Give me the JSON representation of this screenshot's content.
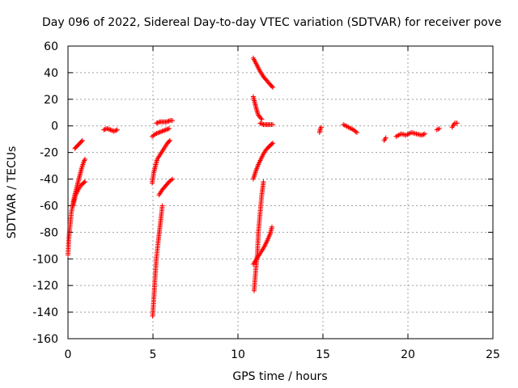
{
  "chart_data": {
    "type": "scatter",
    "title": "Day 096 of 2022, Sidereal Day-to-day VTEC variation (SDTVAR) for receiver pove",
    "xlabel": "GPS time / hours",
    "ylabel": "SDTVAR / TECUs",
    "xlim": [
      0,
      25
    ],
    "ylim": [
      -160,
      60
    ],
    "xticks": [
      0,
      5,
      10,
      15,
      20,
      25
    ],
    "yticks": [
      -160,
      -140,
      -120,
      -100,
      -80,
      -60,
      -40,
      -20,
      0,
      20,
      40,
      60
    ],
    "xtick_labels": [
      "0",
      "5",
      "10",
      "15",
      "20",
      "25"
    ],
    "ytick_labels": [
      "-160",
      "-140",
      "-120",
      "-100",
      "-80",
      "-60",
      "-40",
      "-20",
      "0",
      "20",
      "40",
      "60"
    ],
    "grid": true,
    "marker": "+",
    "series": [
      {
        "name": "SDTVAR",
        "color": "#ff0000",
        "segments": [
          {
            "x": [
              0.0,
              0.05,
              0.1,
              0.15,
              0.2,
              0.3,
              0.4,
              0.5,
              0.6,
              0.7,
              0.8,
              0.9,
              1.0
            ],
            "y": [
              -97,
              -85,
              -78,
              -72,
              -65,
              -58,
              -52,
              -47,
              -42,
              -37,
              -32,
              -28,
              -25
            ]
          },
          {
            "x": [
              0.3,
              0.45,
              0.6,
              0.75,
              0.9,
              1.0
            ],
            "y": [
              -60,
              -52,
              -48,
              -45,
              -43,
              -42
            ]
          },
          {
            "x": [
              0.4,
              0.55,
              0.7,
              0.85
            ],
            "y": [
              -17,
              -15,
              -13,
              -11
            ]
          },
          {
            "x": [
              2.1,
              2.3,
              2.5,
              2.7,
              2.9
            ],
            "y": [
              -3,
              -2,
              -3,
              -4,
              -3
            ]
          },
          {
            "x": [
              4.95,
              5.05,
              5.15,
              5.25,
              5.4,
              5.55,
              5.7,
              5.85,
              6.0
            ],
            "y": [
              -43,
              -35,
              -30,
              -25,
              -22,
              -19,
              -16,
              -13,
              -11
            ]
          },
          {
            "x": [
              4.95,
              5.15,
              5.35,
              5.55,
              5.75,
              5.95
            ],
            "y": [
              -8,
              -6,
              -5,
              -4,
              -3,
              -2
            ]
          },
          {
            "x": [
              5.2,
              5.4,
              5.6,
              5.8,
              6.0,
              6.15
            ],
            "y": [
              2,
              3,
              3,
              3,
              4,
              4
            ]
          },
          {
            "x": [
              4.98,
              5.05,
              5.12,
              5.2,
              5.3,
              5.4,
              5.5,
              5.55
            ],
            "y": [
              -143,
              -130,
              -115,
              -100,
              -88,
              -77,
              -66,
              -60
            ]
          },
          {
            "x": [
              5.35,
              5.55,
              5.75,
              5.95,
              6.15
            ],
            "y": [
              -52,
              -48,
              -45,
              -42,
              -40
            ]
          },
          {
            "x": [
              10.9,
              11.1,
              11.3,
              11.5,
              11.7,
              11.9,
              12.05
            ],
            "y": [
              51,
              46,
              41,
              37,
              34,
              31,
              29
            ]
          },
          {
            "x": [
              10.9,
              11.0,
              11.1,
              11.2,
              11.4
            ],
            "y": [
              22,
              17,
              12,
              8,
              5
            ]
          },
          {
            "x": [
              11.3,
              11.5,
              11.7,
              11.9,
              12.05
            ],
            "y": [
              2,
              1,
              1,
              1,
              1
            ]
          },
          {
            "x": [
              10.9,
              11.05,
              11.2,
              11.35,
              11.5,
              11.65,
              11.8,
              11.95,
              12.05
            ],
            "y": [
              -40,
              -34,
              -29,
              -25,
              -21,
              -18,
              -16,
              -14,
              -13
            ]
          },
          {
            "x": [
              10.95,
              11.05,
              11.15,
              11.2,
              11.3,
              11.4,
              11.5
            ],
            "y": [
              -124,
              -108,
              -95,
              -80,
              -66,
              -52,
              -42
            ]
          },
          {
            "x": [
              10.9,
              11.1,
              11.3,
              11.5,
              11.7,
              11.9,
              12.0
            ],
            "y": [
              -104,
              -100,
              -96,
              -92,
              -87,
              -81,
              -76
            ]
          },
          {
            "x": [
              14.8,
              14.85,
              14.9
            ],
            "y": [
              -5,
              -2,
              -1
            ]
          },
          {
            "x": [
              16.2,
              16.5,
              16.8,
              17.0
            ],
            "y": [
              1,
              -1,
              -3,
              -5
            ]
          },
          {
            "x": [
              18.6,
              18.7
            ],
            "y": [
              -11,
              -9
            ]
          },
          {
            "x": [
              19.3,
              19.6,
              19.9,
              20.2,
              20.5,
              20.8,
              21.0
            ],
            "y": [
              -8,
              -6,
              -7,
              -5,
              -6,
              -7,
              -6
            ]
          },
          {
            "x": [
              21.7,
              21.85
            ],
            "y": [
              -3,
              -2
            ]
          },
          {
            "x": [
              22.6,
              22.75,
              22.9
            ],
            "y": [
              -1,
              2,
              2
            ]
          }
        ]
      }
    ]
  }
}
